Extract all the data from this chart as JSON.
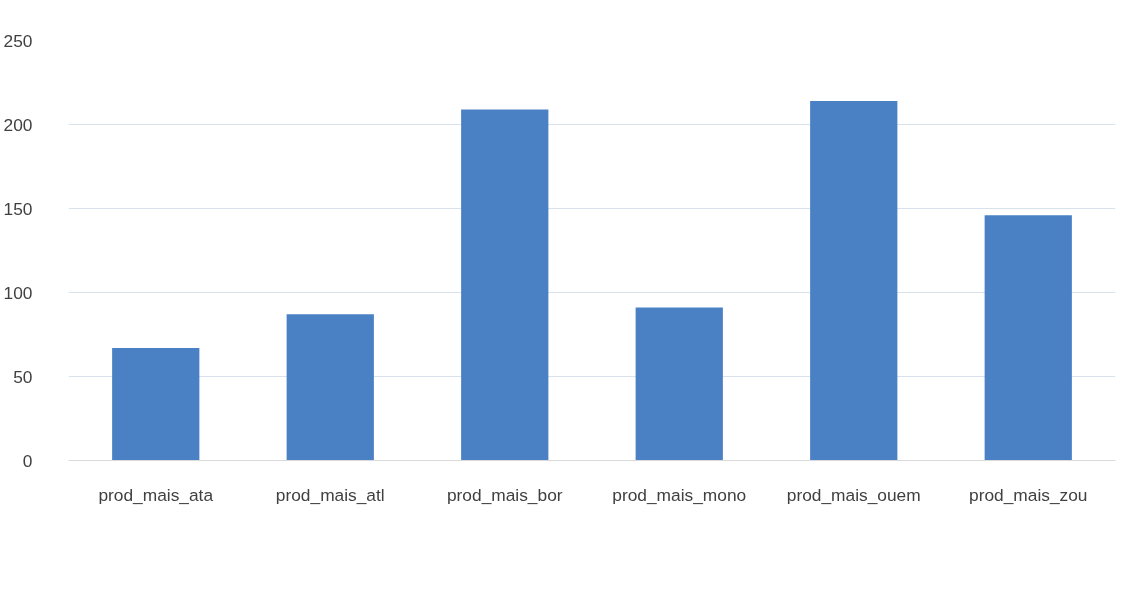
{
  "chart_data": {
    "type": "bar",
    "categories": [
      "prod_mais_ata",
      "prod_mais_atl",
      "prod_mais_bor",
      "prod_mais_mono",
      "prod_mais_ouem",
      "prod_mais_zou"
    ],
    "values": [
      67,
      87,
      209,
      91,
      214,
      146
    ],
    "color": "#4a80c4",
    "ylim": [
      0,
      250
    ],
    "yticks": [
      0,
      50,
      100,
      150,
      200,
      250
    ],
    "grid": "y"
  }
}
